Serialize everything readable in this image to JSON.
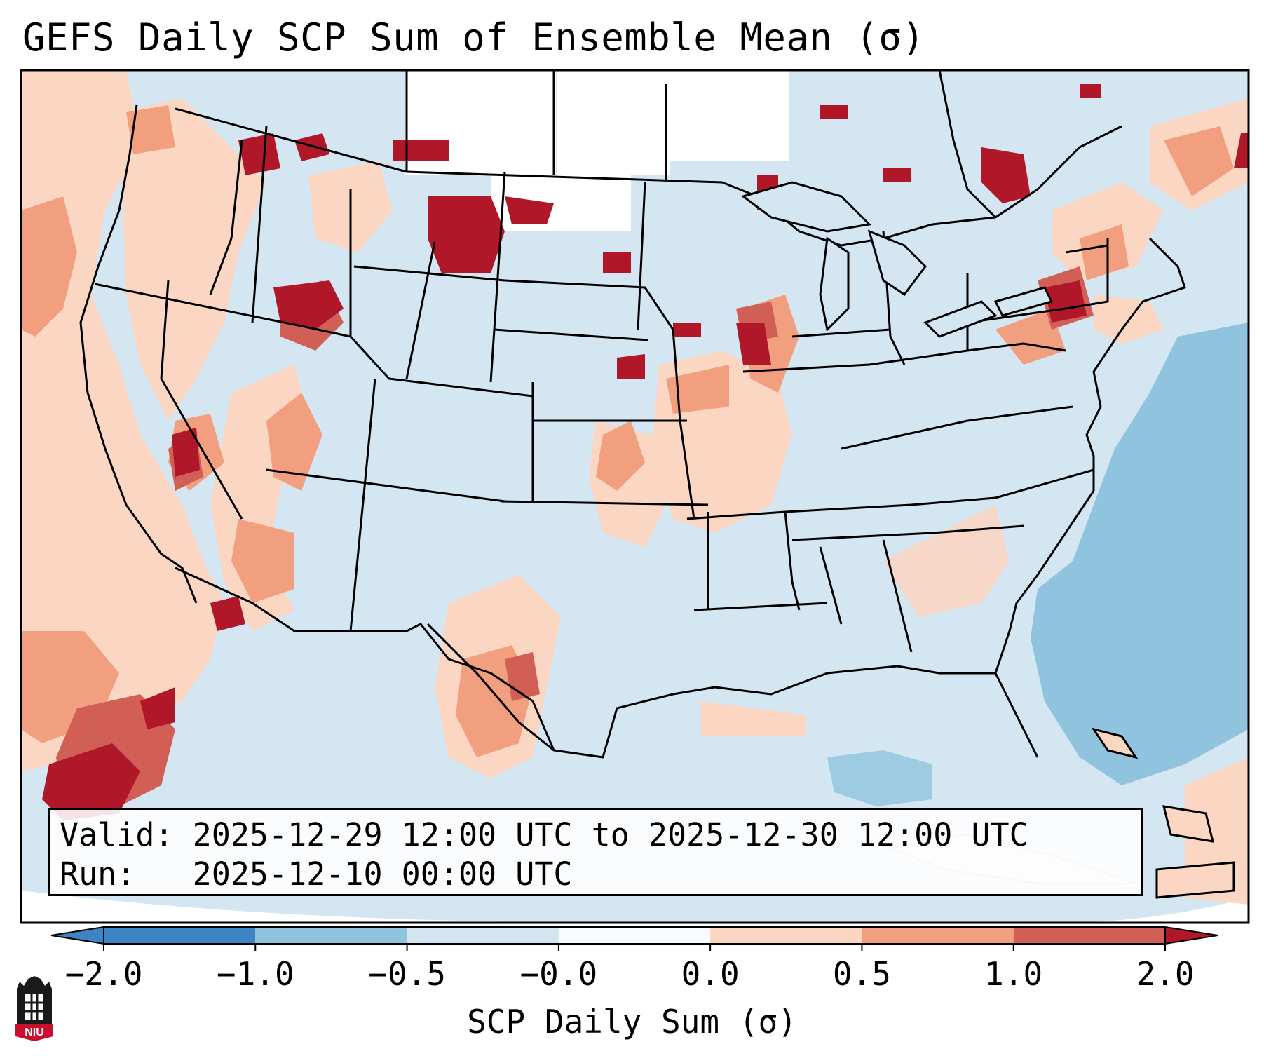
{
  "title": "GEFS Daily SCP Sum of Ensemble Mean (σ)",
  "info": {
    "valid_label": "Valid:",
    "valid_value": "2025-12-29 12:00 UTC to 2025-12-30 12:00 UTC",
    "run_label": "Run:",
    "run_value": "2025-12-10 00:00 UTC"
  },
  "colorbar": {
    "title": "SCP Daily Sum (σ)",
    "ticks": [
      "−2.0",
      "−1.0",
      "−0.5",
      "−0.0",
      "0.0",
      "0.5",
      "1.0",
      "2.0"
    ],
    "colors": [
      "#3d85c2",
      "#90c4de",
      "#d2e5f1",
      "#f8fbfd",
      "#fbd6c3",
      "#f29f7f",
      "#d25f55",
      "#b0182a"
    ],
    "extend": "both"
  },
  "map": {
    "region": "CONUS",
    "palette": {
      "ocean_base": "#d3e6f1",
      "neg_strong": "#90c4de",
      "pos_light": "#fbd6c3",
      "pos_mid": "#f29f7f",
      "pos_high": "#d25f55",
      "pos_max": "#b0182a",
      "near_zero": "#ffffff"
    }
  },
  "logo": {
    "text": "NIU"
  }
}
